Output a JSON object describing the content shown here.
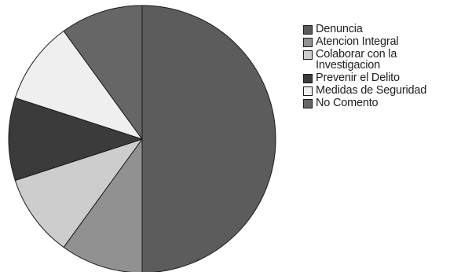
{
  "chart_data": {
    "type": "pie",
    "categories": [
      "Denuncia",
      "Atencion Integral",
      "Colaborar con la\nInvestigacion",
      "Prevenir el Delito",
      "Medidas de Seguridad",
      "No Comento"
    ],
    "values": [
      50,
      10,
      10,
      10,
      10,
      10
    ],
    "colors": [
      "#5c5c5c",
      "#919191",
      "#cdcdcd",
      "#3b3b3b",
      "#efefef",
      "#666666"
    ],
    "legend_position": "right",
    "start_angle": "12 o'clock",
    "direction": "clockwise",
    "outline_color": "#1a1a1a"
  }
}
